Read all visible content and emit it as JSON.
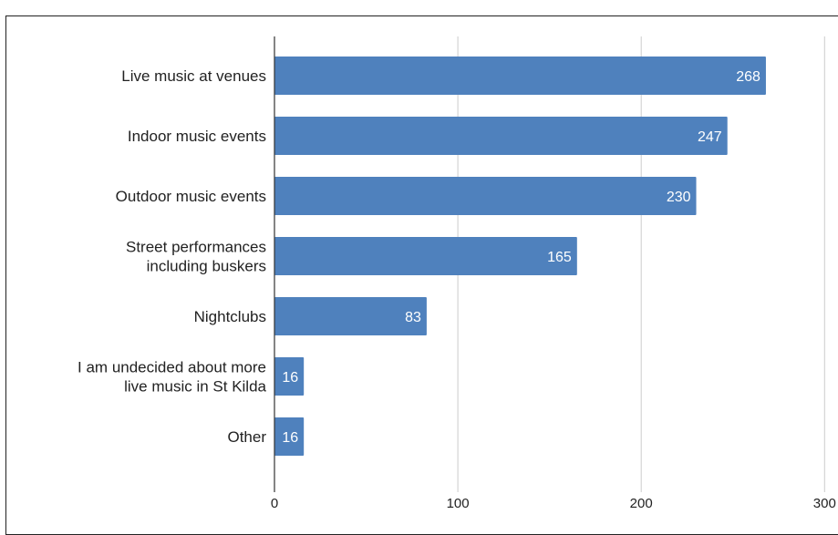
{
  "caption": "",
  "chart_data": {
    "type": "bar",
    "orientation": "horizontal",
    "title": "",
    "xlabel": "",
    "ylabel": "",
    "categories": [
      [
        "Live music at venues"
      ],
      [
        "Indoor music events"
      ],
      [
        "Outdoor music events"
      ],
      [
        "Street performances",
        "including buskers"
      ],
      [
        "Nightclubs"
      ],
      [
        "I am undecided about more",
        "live music in St Kilda"
      ],
      [
        "Other"
      ]
    ],
    "values": [
      268,
      247,
      230,
      165,
      83,
      16,
      16
    ],
    "xlim": [
      0,
      300
    ],
    "xticks": [
      0,
      100,
      200,
      300
    ],
    "grid": "vertical",
    "legend": "none",
    "colors": {
      "bar": "#4f81bd",
      "value_label": "#ffffff",
      "grid": "#cccccc"
    }
  }
}
